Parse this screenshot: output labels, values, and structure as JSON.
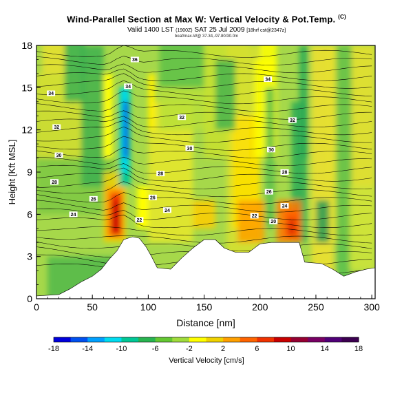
{
  "header": {
    "title": "Wind-Parallel Section at Max W: Vertical Velocity & Pot.Temp.",
    "title_mark": "(C)",
    "subtitle": "Valid 1400 LST",
    "subtitle_small": "(1900Z)",
    "subtitle_date": "SAT 25 Jul 2009",
    "subtitle_extra": "[18hrf cst@2347z]",
    "credit": "boaf/max-W@  37.34,-97.80/30.0m"
  },
  "chart_data": {
    "type": "heatmap",
    "title": "Wind-Parallel Section at Max W: Vertical Velocity & Pot.Temp.",
    "xlabel": "Distance [nm]",
    "ylabel": "Height [Kft MSL]",
    "xlim": [
      0,
      303
    ],
    "ylim": [
      0,
      18
    ],
    "xticks": [
      0,
      50,
      100,
      150,
      200,
      250,
      300
    ],
    "yticks": [
      0,
      3,
      6,
      9,
      12,
      15,
      18
    ],
    "colorbar": {
      "label": "Vertical Velocity [cm/s]",
      "ticks": [
        -18,
        -14,
        -10,
        -6,
        -2,
        2,
        6,
        10,
        14,
        18
      ],
      "colors": [
        "#0000dc",
        "#0050f0",
        "#00a0ff",
        "#00dcf0",
        "#00c896",
        "#28b450",
        "#64c832",
        "#a0dc3c",
        "#ffff00",
        "#f0d200",
        "#ffa000",
        "#ff6400",
        "#f03200",
        "#c80000",
        "#960032",
        "#780064",
        "#500078",
        "#3c0050"
      ]
    },
    "theta_contour_labels": [
      "20",
      "22",
      "24",
      "26",
      "28",
      "30",
      "32",
      "34",
      "36"
    ],
    "theta_labels_shown": [
      {
        "value": "36",
        "x": 88,
        "y": 17.0
      },
      {
        "value": "34",
        "x": 13,
        "y": 14.6
      },
      {
        "value": "34",
        "x": 82,
        "y": 15.1
      },
      {
        "value": "34",
        "x": 207,
        "y": 15.6
      },
      {
        "value": "32",
        "x": 18,
        "y": 12.2
      },
      {
        "value": "32",
        "x": 130,
        "y": 12.9
      },
      {
        "value": "32",
        "x": 229,
        "y": 12.7
      },
      {
        "value": "30",
        "x": 20,
        "y": 10.2
      },
      {
        "value": "30",
        "x": 137,
        "y": 10.7
      },
      {
        "value": "30",
        "x": 210,
        "y": 10.6
      },
      {
        "value": "28",
        "x": 16,
        "y": 8.3
      },
      {
        "value": "28",
        "x": 111,
        "y": 8.9
      },
      {
        "value": "28",
        "x": 222,
        "y": 9.0
      },
      {
        "value": "26",
        "x": 51,
        "y": 7.1
      },
      {
        "value": "26",
        "x": 104,
        "y": 7.2
      },
      {
        "value": "26",
        "x": 208,
        "y": 7.6
      },
      {
        "value": "24",
        "x": 33,
        "y": 6.0
      },
      {
        "value": "24",
        "x": 117,
        "y": 6.3
      },
      {
        "value": "24",
        "x": 222,
        "y": 6.6
      },
      {
        "value": "22",
        "x": 92,
        "y": 5.6
      },
      {
        "value": "22",
        "x": 195,
        "y": 5.9
      },
      {
        "value": "20",
        "x": 212,
        "y": 5.5
      }
    ],
    "terrain": [
      {
        "x": 0,
        "y": 0.2
      },
      {
        "x": 20,
        "y": 0.3
      },
      {
        "x": 30,
        "y": 0.7
      },
      {
        "x": 40,
        "y": 1.2
      },
      {
        "x": 50,
        "y": 1.6
      },
      {
        "x": 58,
        "y": 2.1
      },
      {
        "x": 65,
        "y": 2.8
      },
      {
        "x": 72,
        "y": 3.4
      },
      {
        "x": 78,
        "y": 4.2
      },
      {
        "x": 86,
        "y": 4.4
      },
      {
        "x": 92,
        "y": 4.3
      },
      {
        "x": 98,
        "y": 3.7
      },
      {
        "x": 103,
        "y": 3.0
      },
      {
        "x": 108,
        "y": 2.2
      },
      {
        "x": 120,
        "y": 2.1
      },
      {
        "x": 130,
        "y": 2.9
      },
      {
        "x": 140,
        "y": 3.6
      },
      {
        "x": 150,
        "y": 4.2
      },
      {
        "x": 160,
        "y": 4.2
      },
      {
        "x": 168,
        "y": 3.6
      },
      {
        "x": 178,
        "y": 3.3
      },
      {
        "x": 190,
        "y": 3.3
      },
      {
        "x": 200,
        "y": 3.9
      },
      {
        "x": 210,
        "y": 4.0
      },
      {
        "x": 222,
        "y": 4.0
      },
      {
        "x": 235,
        "y": 4.0
      },
      {
        "x": 240,
        "y": 2.6
      },
      {
        "x": 255,
        "y": 2.5
      },
      {
        "x": 265,
        "y": 2.1
      },
      {
        "x": 275,
        "y": 1.6
      },
      {
        "x": 285,
        "y": 1.9
      },
      {
        "x": 295,
        "y": 2.1
      },
      {
        "x": 303,
        "y": 2.2
      }
    ],
    "features": [
      {
        "kind": "updraft-core",
        "x": 72,
        "y_min": 4.5,
        "y_max": 7.5,
        "w_max": 18
      },
      {
        "kind": "downdraft-core",
        "x": 79,
        "y_min": 8,
        "y_max": 15,
        "w_min": -18
      },
      {
        "kind": "updraft-core",
        "x": 228,
        "y_min": 4.5,
        "y_max": 6.0,
        "w_max": 12
      },
      {
        "kind": "updraft-band",
        "x": 205,
        "y_min": 8,
        "y_max": 17,
        "w_max": 5
      }
    ]
  }
}
